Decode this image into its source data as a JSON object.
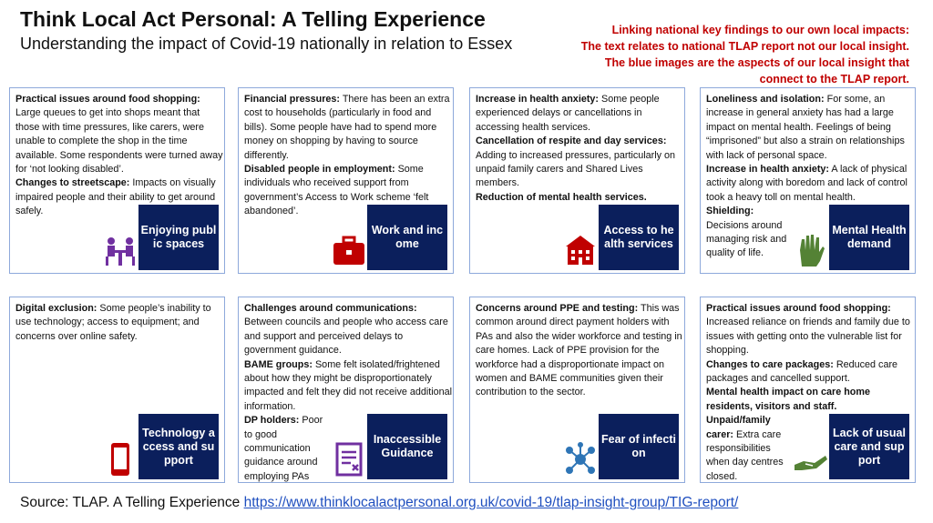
{
  "header": {
    "title": "Think Local Act Personal: A Telling Experience",
    "subtitle": "Understanding the impact of Covid-19 nationally in relation to Essex"
  },
  "note": {
    "lines": [
      "Linking national key findings to our own local impacts:",
      "The text relates to national TLAP report not our local insight.",
      "The blue images are the aspects of our local insight that",
      "connect to the TLAP report."
    ]
  },
  "cards": [
    {
      "paragraphs": [
        {
          "heading": "Practical issues around food shopping:",
          "text": "Large queues to get into shops meant that those with time pressures, like carers, were unable to complete the shop in the time available. Some respondents were turned away for ‘not looking disabled’."
        },
        {
          "heading": "Changes to streetscape:",
          "text": "Impacts on visually impaired people and their ability to get around safely."
        }
      ],
      "badge": "Enjoying public spaces"
    },
    {
      "paragraphs": [
        {
          "heading": "Financial pressures:",
          "text": "There has been an extra cost to households (particularly in food and bills). Some people have had to spend more money on shopping by having to source differently."
        },
        {
          "heading": "Disabled people in employment:",
          "text": "Some individuals who received support from government’s Access to Work scheme ‘felt abandoned’."
        }
      ],
      "badge": "Work and income"
    },
    {
      "paragraphs": [
        {
          "heading": "Increase in health anxiety:",
          "text": "Some people experienced delays or cancellations in accessing health services."
        },
        {
          "heading": "Cancellation of respite and day services:",
          "text": "Adding to increased pressures, particularly on unpaid family carers and Shared Lives members."
        },
        {
          "heading": "Reduction of mental health services."
        }
      ],
      "badge": "Access to health services"
    },
    {
      "paragraphs": [
        {
          "heading": "Loneliness and isolation:",
          "text": "For some, an increase in general anxiety has had a large impact on mental health. Feelings of being “imprisoned” but also a strain on relationships with lack of personal space."
        },
        {
          "heading": "Increase in health anxiety:",
          "text": "A lack of physical activity along with boredom and lack of control took a heavy toll on mental health."
        },
        {
          "heading": "Shielding:",
          "text": "Decisions around managing risk and quality of life."
        }
      ],
      "badge": "Mental Health demand"
    },
    {
      "paragraphs": [
        {
          "heading": "Digital exclusion:",
          "text": "Some people’s inability to use technology; access to equipment; and concerns over online safety."
        }
      ],
      "badge": "Technology access and support"
    },
    {
      "paragraphs": [
        {
          "heading": "Challenges around communications:",
          "text": "Between councils and people who access care and support and perceived delays to government guidance."
        },
        {
          "heading": "BAME groups:",
          "text": "Some felt isolated/frightened about how they might be disproportionately impacted and felt they did not receive additional information."
        },
        {
          "heading": "DP holders:",
          "text": "Poor to good communication guidance around employing PAs and shielding."
        }
      ],
      "badge": "Inaccessible Guidance"
    },
    {
      "paragraphs": [
        {
          "heading": "Concerns around PPE and testing:",
          "text": "This was common around direct payment holders with PAs and also the wider workforce and testing in care homes. Lack of PPE provision for the workforce had a disproportionate impact on women and BAME communities given their contribution to the sector."
        }
      ],
      "badge": "Fear of infection"
    },
    {
      "paragraphs": [
        {
          "heading": "Practical issues around food shopping:",
          "text": "Increased reliance on friends and family due to issues with getting onto the vulnerable list for shopping."
        },
        {
          "heading": "Changes to care packages:",
          "text": "Reduced care packages and cancelled support."
        },
        {
          "heading": "Mental health impact on care home residents, visitors and staff."
        },
        {
          "heading": "Unpaid/family carer:",
          "text": "Extra care responsibilities when day centres closed."
        }
      ],
      "badge": "Lack of usual care and support"
    }
  ],
  "source": {
    "text": "Source: TLAP. A Telling Experience",
    "link": "https://www.thinklocalactpersonal.org.uk/covid-19/tlap-insight-group/TIG-report/"
  }
}
